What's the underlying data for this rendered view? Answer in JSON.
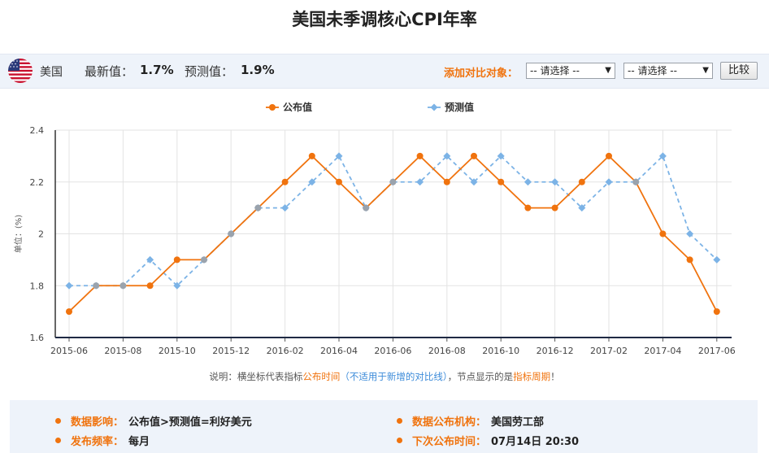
{
  "page_title": "美国未季调核心CPI年率",
  "info": {
    "country": "美国",
    "latest_label": "最新值：",
    "latest_value": "1.7%",
    "forecast_label": "预测值：",
    "forecast_value": "1.9%",
    "compare_label": "添加对比对象：",
    "select1": "-- 请选择 --",
    "select2": "-- 请选择 --",
    "compare_button": "比较"
  },
  "note": {
    "p1": "说明：横坐标代表指标",
    "p2": "公布时间",
    "p3": "（不适用于新增的对比线）",
    "p4": "，节点显示的是",
    "p5": "指标周期",
    "p6": "！"
  },
  "footer": {
    "impact_label": "数据影响：",
    "impact_value": "公布值>预测值=利好美元",
    "agency_label": "数据公布机构：",
    "agency_value": "美国劳工部",
    "freq_label": "发布频率：",
    "freq_value": "每月",
    "next_label": "下次公布时间：",
    "next_value": "07月14日 20:30"
  },
  "colors": {
    "actual": "#f0730e",
    "forecast": "#7cb3e6",
    "accent": "#f0730e"
  },
  "chart_data": {
    "type": "line",
    "ylabel": "单位：(%)",
    "ylim": [
      1.6,
      2.4
    ],
    "yticks": [
      "1.6",
      "1.8",
      "2",
      "2.2",
      "2.4"
    ],
    "xticks": [
      "2015-06",
      "2015-08",
      "2015-10",
      "2015-12",
      "2016-02",
      "2016-04",
      "2016-06",
      "2016-08",
      "2016-10",
      "2016-12",
      "2017-02",
      "2017-04",
      "2017-06"
    ],
    "x": [
      "2015-06",
      "2015-07",
      "2015-08",
      "2015-09",
      "2015-10",
      "2015-11",
      "2015-12",
      "2016-01",
      "2016-02",
      "2016-03",
      "2016-04",
      "2016-05",
      "2016-06",
      "2016-07",
      "2016-08",
      "2016-09",
      "2016-10",
      "2016-11",
      "2016-12",
      "2017-01",
      "2017-02",
      "2017-03",
      "2017-04",
      "2017-05",
      "2017-06"
    ],
    "grid": true,
    "legend_position": "top-center",
    "series": [
      {
        "name": "公布值",
        "values": [
          1.7,
          1.8,
          1.8,
          1.8,
          1.9,
          1.9,
          2.0,
          2.1,
          2.2,
          2.3,
          2.2,
          2.1,
          2.2,
          2.3,
          2.2,
          2.3,
          2.2,
          2.1,
          2.1,
          2.2,
          2.3,
          2.2,
          2.0,
          1.9,
          1.7
        ]
      },
      {
        "name": "预测值",
        "values": [
          1.8,
          1.8,
          1.8,
          1.9,
          1.8,
          1.9,
          2.0,
          2.1,
          2.1,
          2.2,
          2.3,
          2.1,
          2.2,
          2.2,
          2.3,
          2.2,
          2.3,
          2.2,
          2.2,
          2.1,
          2.2,
          2.2,
          2.3,
          2.0,
          1.9
        ]
      }
    ]
  }
}
